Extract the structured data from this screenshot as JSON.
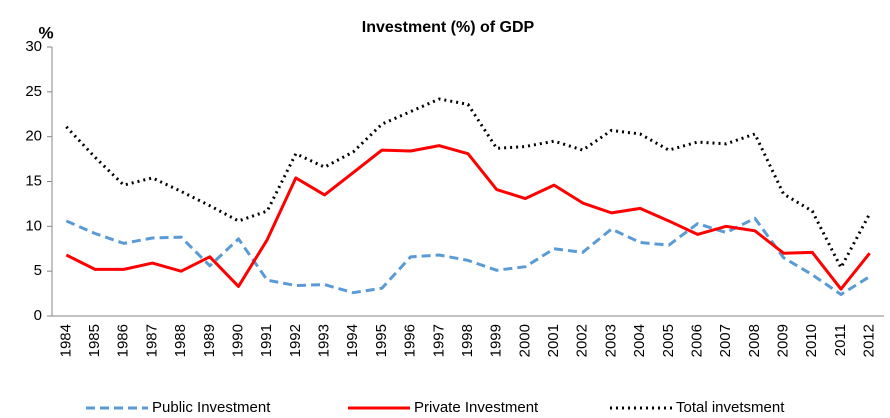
{
  "chart_data": {
    "type": "line",
    "title": "Investment (%) of GDP",
    "y_label": "%",
    "categories": [
      "1984",
      "1985",
      "1986",
      "1987",
      "1988",
      "1989",
      "1990",
      "1991",
      "1992",
      "1993",
      "1994",
      "1995",
      "1996",
      "1997",
      "1998",
      "1999",
      "2000",
      "2001",
      "2002",
      "2003",
      "2004",
      "2005",
      "2006",
      "2007",
      "2008",
      "2009",
      "2010",
      "2011",
      "2012"
    ],
    "series": [
      {
        "name": "Public Investment",
        "color": "#5b9bd5",
        "dash": "dashed",
        "values": [
          10.6,
          9.2,
          8.1,
          8.7,
          8.8,
          5.6,
          8.6,
          4.0,
          3.4,
          3.5,
          2.6,
          3.1,
          6.6,
          6.8,
          6.2,
          5.1,
          5.5,
          7.5,
          7.1,
          9.7,
          8.2,
          7.9,
          10.3,
          9.3,
          10.9,
          6.5,
          4.6,
          2.4,
          4.4
        ]
      },
      {
        "name": "Private Investment",
        "color": "#ff0000",
        "dash": "solid",
        "values": [
          6.8,
          5.2,
          5.2,
          5.9,
          5.0,
          6.6,
          3.3,
          8.5,
          15.4,
          13.5,
          16.0,
          18.5,
          18.4,
          19.0,
          18.1,
          14.1,
          13.1,
          14.6,
          12.6,
          11.5,
          12.0,
          10.6,
          9.1,
          10.0,
          9.5,
          7.0,
          7.1,
          3.0,
          7.0
        ]
      },
      {
        "name": "Total invetsment",
        "color": "#000000",
        "dash": "dotted",
        "values": [
          21.1,
          17.7,
          14.6,
          15.4,
          13.9,
          12.3,
          10.6,
          11.7,
          18.1,
          16.6,
          18.3,
          21.4,
          22.8,
          24.2,
          23.6,
          18.7,
          18.9,
          19.5,
          18.5,
          20.7,
          20.3,
          18.5,
          19.4,
          19.2,
          20.3,
          13.6,
          11.7,
          5.4,
          11.4
        ]
      }
    ],
    "ylim": [
      0,
      30
    ],
    "yticks": [
      0,
      5,
      10,
      15,
      20,
      25,
      30
    ],
    "grid": false,
    "legend": "bottom"
  }
}
